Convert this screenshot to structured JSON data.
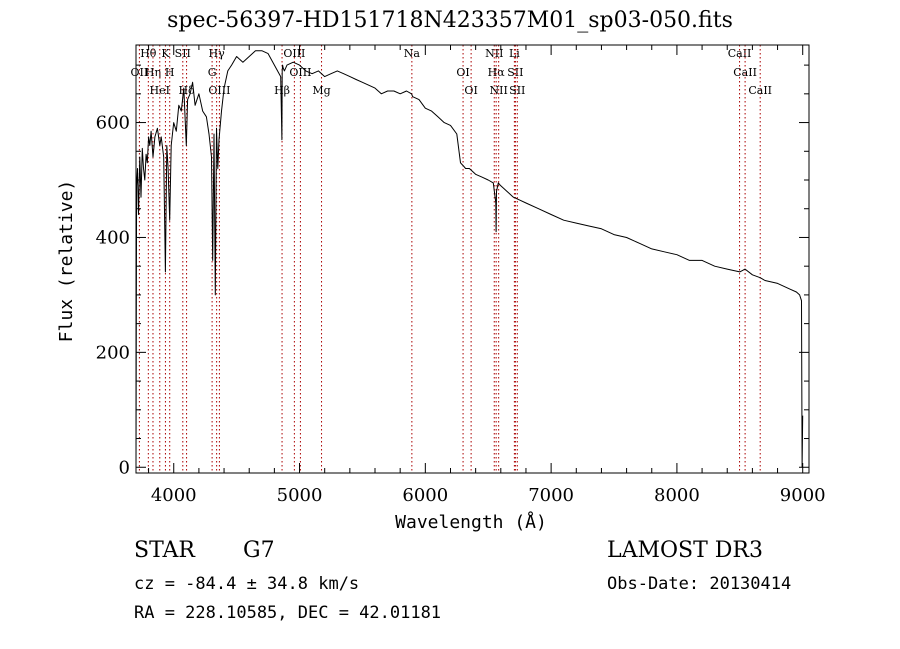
{
  "chart_data": {
    "type": "line",
    "title": "spec-56397-HD151718N423357M01_sp03-050.fits",
    "xlabel": "Wavelength (Å)",
    "ylabel": "Flux (relative)",
    "xlim": [
      3700,
      9050
    ],
    "ylim": [
      -10,
      735
    ],
    "xticks": [
      4000,
      5000,
      6000,
      7000,
      8000,
      9000
    ],
    "xtick_labels": [
      "4000",
      "5000",
      "6000",
      "7000",
      "8000",
      "9000"
    ],
    "yticks": [
      0,
      200,
      400,
      600
    ],
    "ytick_labels": [
      "0",
      "200",
      "400",
      "600"
    ],
    "series": [
      {
        "name": "spectrum",
        "x": [
          3700,
          3705,
          3712,
          3720,
          3730,
          3740,
          3750,
          3760,
          3770,
          3780,
          3790,
          3800,
          3810,
          3820,
          3835,
          3850,
          3870,
          3889,
          3900,
          3920,
          3934,
          3945,
          3955,
          3968,
          3980,
          4000,
          4020,
          4040,
          4060,
          4080,
          4100,
          4110,
          4130,
          4150,
          4170,
          4200,
          4230,
          4260,
          4280,
          4300,
          4310,
          4320,
          4330,
          4340,
          4350,
          4360,
          4380,
          4400,
          4430,
          4460,
          4500,
          4550,
          4600,
          4650,
          4700,
          4750,
          4800,
          4850,
          4860,
          4862,
          4865,
          4870,
          4880,
          4900,
          4950,
          5000,
          5050,
          5100,
          5150,
          5200,
          5250,
          5300,
          5350,
          5400,
          5450,
          5500,
          5550,
          5600,
          5650,
          5700,
          5750,
          5800,
          5850,
          5890,
          5900,
          5950,
          6000,
          6050,
          6100,
          6150,
          6200,
          6250,
          6280,
          6300,
          6320,
          6350,
          6400,
          6450,
          6500,
          6540,
          6560,
          6563,
          6566,
          6580,
          6600,
          6650,
          6700,
          6750,
          6800,
          6900,
          7000,
          7100,
          7200,
          7300,
          7400,
          7500,
          7600,
          7700,
          7800,
          7900,
          8000,
          8100,
          8200,
          8300,
          8400,
          8500,
          8542,
          8600,
          8662,
          8700,
          8800,
          8900,
          8950,
          8975,
          8990,
          8995,
          9000
        ],
        "values": [
          0,
          490,
          520,
          440,
          540,
          470,
          555,
          520,
          500,
          545,
          530,
          575,
          560,
          585,
          540,
          575,
          590,
          560,
          575,
          540,
          340,
          560,
          520,
          430,
          560,
          600,
          585,
          630,
          620,
          660,
          560,
          640,
          650,
          670,
          630,
          650,
          620,
          610,
          580,
          540,
          360,
          580,
          300,
          590,
          520,
          570,
          620,
          660,
          690,
          700,
          715,
          705,
          715,
          725,
          725,
          720,
          700,
          680,
          570,
          690,
          700,
          695,
          690,
          700,
          705,
          700,
          690,
          685,
          690,
          680,
          685,
          690,
          685,
          680,
          675,
          670,
          665,
          660,
          650,
          655,
          655,
          650,
          655,
          650,
          645,
          640,
          625,
          620,
          610,
          600,
          595,
          580,
          530,
          525,
          520,
          520,
          510,
          505,
          500,
          495,
          460,
          410,
          480,
          495,
          490,
          480,
          470,
          465,
          460,
          450,
          440,
          430,
          425,
          420,
          415,
          405,
          400,
          390,
          380,
          375,
          370,
          360,
          360,
          350,
          345,
          340,
          345,
          335,
          330,
          325,
          320,
          310,
          305,
          300,
          290,
          0,
          90
        ]
      }
    ],
    "line_annotations": [
      {
        "name": "Hθ",
        "wavelength": 3798
      },
      {
        "name": "Hη",
        "wavelength": 3835
      },
      {
        "name": "HeI",
        "wavelength": 3889
      },
      {
        "name": "K",
        "wavelength": 3934
      },
      {
        "name": "H",
        "wavelength": 3968
      },
      {
        "name": "Hδ",
        "wavelength": 4102
      },
      {
        "name": "SII",
        "wavelength": 4072
      },
      {
        "name": "OII",
        "wavelength": 3727
      },
      {
        "name": "OIII",
        "wavelength": 4363
      },
      {
        "name": "Hγ",
        "wavelength": 4341
      },
      {
        "name": "G",
        "wavelength": 4305
      },
      {
        "name": "Hβ",
        "wavelength": 4861
      },
      {
        "name": "OIII",
        "wavelength": 4959
      },
      {
        "name": "OIII",
        "wavelength": 5007
      },
      {
        "name": "Mg",
        "wavelength": 5175
      },
      {
        "name": "Na",
        "wavelength": 5893
      },
      {
        "name": "OI",
        "wavelength": 6300
      },
      {
        "name": "OI",
        "wavelength": 6364
      },
      {
        "name": "NII",
        "wavelength": 6548
      },
      {
        "name": "Hα",
        "wavelength": 6563
      },
      {
        "name": "NII",
        "wavelength": 6583
      },
      {
        "name": "Li",
        "wavelength": 6708
      },
      {
        "name": "SII",
        "wavelength": 6716
      },
      {
        "name": "SII",
        "wavelength": 6731
      },
      {
        "name": "CaII",
        "wavelength": 8498
      },
      {
        "name": "CaII",
        "wavelength": 8542
      },
      {
        "name": "CaII",
        "wavelength": 8662
      }
    ],
    "colors": {
      "line": "#000000",
      "annotation": "#aa0000",
      "axes": "#000000"
    }
  },
  "info": {
    "object_class": "STAR",
    "subclass": "G7",
    "survey": "LAMOST DR3",
    "redshift_text": "cz = -84.4 ± 34.8 km/s",
    "obs_date_text": "Obs-Date: 20130414",
    "coords_text": "RA = 228.10585, DEC =  42.01181"
  }
}
